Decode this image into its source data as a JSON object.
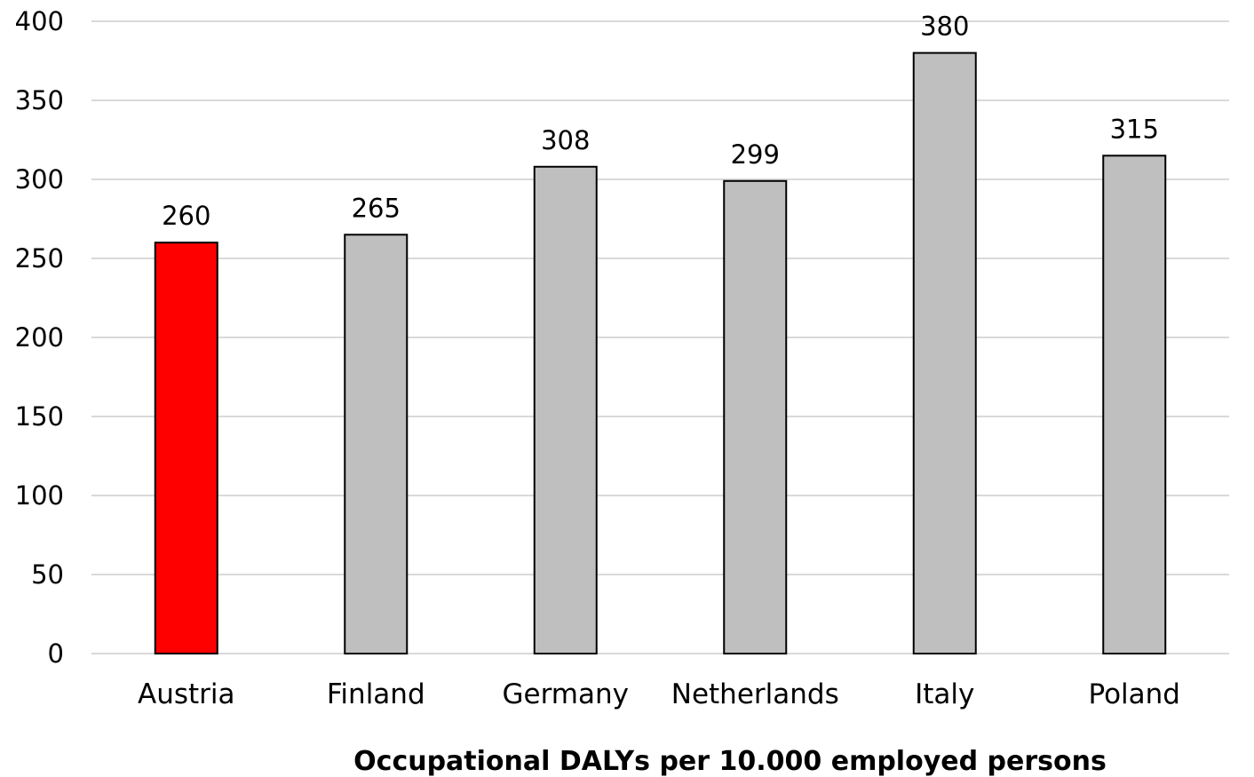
{
  "chart_data": {
    "type": "bar",
    "categories": [
      "Austria",
      "Finland",
      "Germany",
      "Netherlands",
      "Italy",
      "Poland"
    ],
    "values": [
      260,
      265,
      308,
      299,
      380,
      315
    ],
    "data_labels": [
      "260",
      "265",
      "308",
      "299",
      "380",
      "315"
    ],
    "xlabel": "Occupational DALYs per 10.000 employed persons",
    "ylabel": "",
    "ylim": [
      0,
      400
    ],
    "yticks": [
      0,
      50,
      100,
      150,
      200,
      250,
      300,
      350,
      400
    ],
    "ytick_labels": [
      "0",
      "50",
      "100",
      "150",
      "200",
      "250",
      "300",
      "350",
      "400"
    ],
    "grid": true,
    "legend": "none",
    "colors": {
      "highlight": "#ff0000",
      "default": "#bfbfbf"
    },
    "bar_colors": [
      "#ff0000",
      "#bfbfbf",
      "#bfbfbf",
      "#bfbfbf",
      "#bfbfbf",
      "#bfbfbf"
    ]
  }
}
